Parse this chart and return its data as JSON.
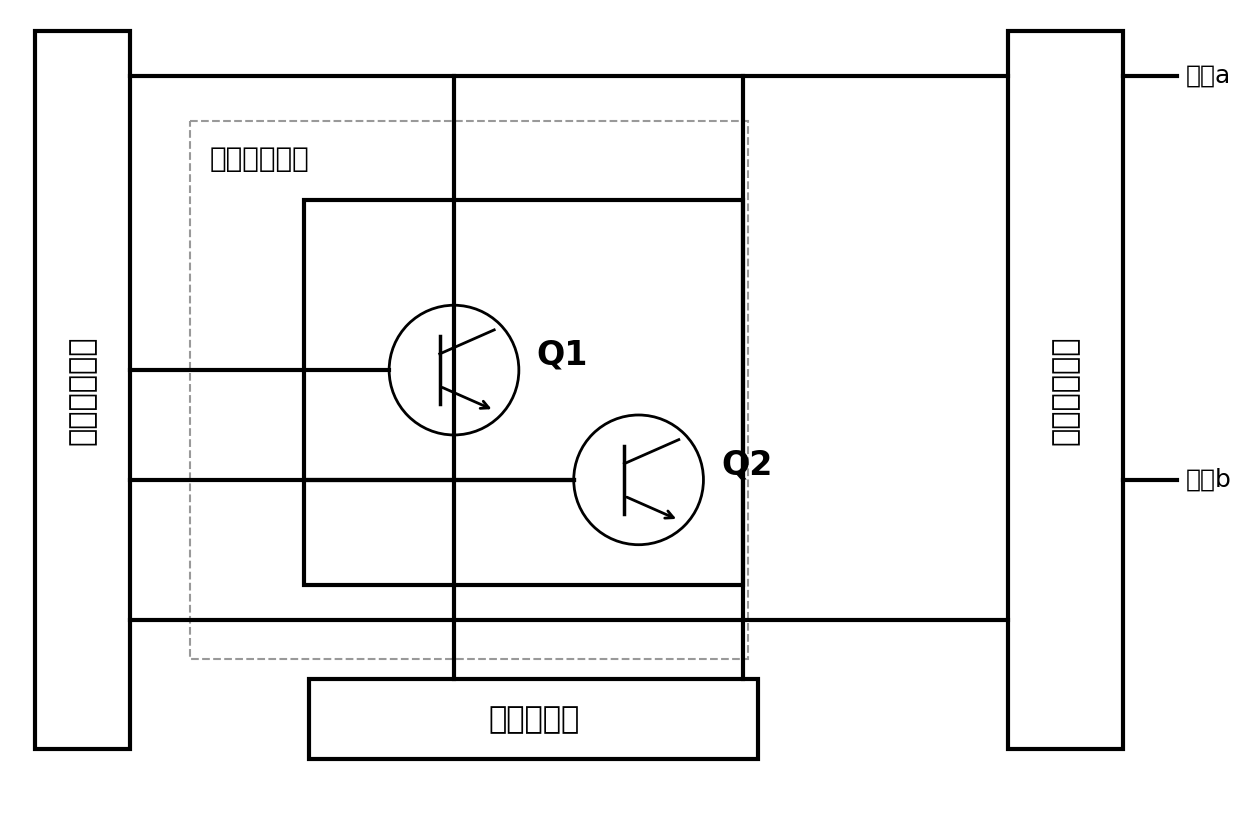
{
  "bg_color": "#ffffff",
  "line_color": "#000000",
  "dashed_color": "#aaaaaa",
  "figw": 12.4,
  "figh": 8.22,
  "dpi": 100,
  "left_box": {
    "label": "混沌振荡环路",
    "fontsize": 22
  },
  "right_box": {
    "label": "输出隔离电路",
    "fontsize": 22
  },
  "bottom_box": {
    "label": "拼流圈电路",
    "fontsize": 22
  },
  "dashed_label": "增益元件电路",
  "dashed_fontsize": 20,
  "port_a": "端口a",
  "port_b": "端口b",
  "port_fontsize": 18,
  "Q1_label": "Q1",
  "Q2_label": "Q2",
  "Q_fontsize": 24
}
